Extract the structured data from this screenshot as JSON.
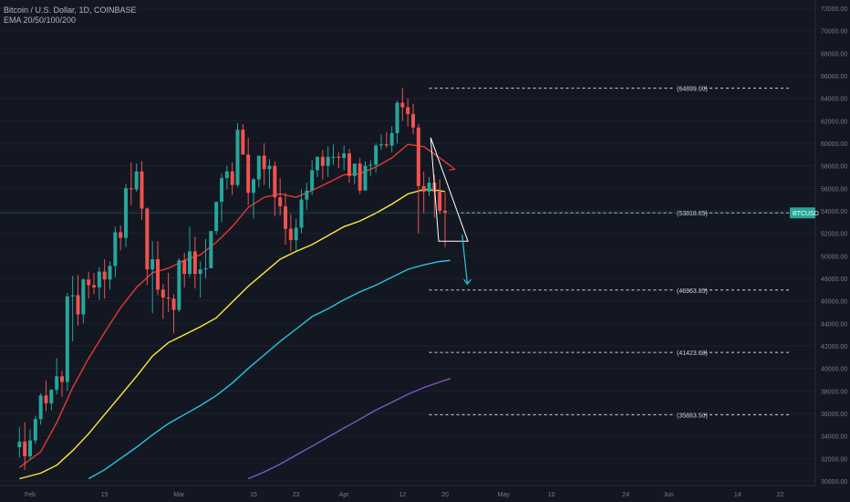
{
  "header": {
    "symbol_line": "Bitcoin / U.S. Dollar, 1D, COINBASE",
    "indicator_line": "EMA 20/50/100/200"
  },
  "colors": {
    "background": "#131722",
    "up_candle": "#26a69a",
    "down_candle": "#ef5350",
    "ema20": "#e53935",
    "ema50": "#ffeb3b",
    "ema100": "#26c6da",
    "ema200": "#7e57c2",
    "level_line": "#d1d4dc",
    "price_label_bg": "#26a69a",
    "axis_text": "#787b86",
    "projection_arrow": "#26c6da"
  },
  "price_axis": {
    "min": 30000,
    "max": 72000,
    "ticks": [
      "30000.00",
      "32000.00",
      "34000.00",
      "36000.00",
      "38000.00",
      "40000.00",
      "42000.00",
      "44000.00",
      "46000.00",
      "48000.00",
      "50000.00",
      "52000.00",
      "54000.00",
      "56000.00",
      "58000.00",
      "60000.00",
      "62000.00",
      "64000.00",
      "66000.00",
      "68000.00",
      "70000.00",
      "72000.00"
    ],
    "current_label": "BTCUSD",
    "current_value": 53818.65
  },
  "time_axis": {
    "labels": [
      {
        "text": "Feb",
        "day": 0
      },
      {
        "text": "15",
        "day": 14
      },
      {
        "text": "Mar",
        "day": 28
      },
      {
        "text": "15",
        "day": 42
      },
      {
        "text": "23",
        "day": 50
      },
      {
        "text": "Apr",
        "day": 59
      },
      {
        "text": "12",
        "day": 70
      },
      {
        "text": "20",
        "day": 78
      },
      {
        "text": "May",
        "day": 89
      },
      {
        "text": "10",
        "day": 98
      },
      {
        "text": "24",
        "day": 112
      },
      {
        "text": "Jun",
        "day": 120
      },
      {
        "text": "14",
        "day": 133
      },
      {
        "text": "22",
        "day": 141
      }
    ]
  },
  "levels": [
    {
      "label": "(64899.00)",
      "value": 64899.0,
      "from_day": 75
    },
    {
      "label": "(53818.65)",
      "value": 53818.65,
      "from_day": 81
    },
    {
      "label": "(46963.85)",
      "value": 46963.85,
      "from_day": 75
    },
    {
      "label": "(41423.68)",
      "value": 41423.68,
      "from_day": 75
    },
    {
      "label": "(35883.50)",
      "value": 35883.5,
      "from_day": 75
    }
  ],
  "chart_data": {
    "type": "candlestick",
    "title": "Bitcoin / U.S. Dollar, 1D, COINBASE",
    "ylim": [
      30000,
      72000
    ],
    "x_unit": "day offset from Feb 1",
    "candles": [
      {
        "x": -2,
        "o": 33000,
        "h": 34800,
        "l": 32100,
        "c": 33500
      },
      {
        "x": -1,
        "o": 33500,
        "h": 35200,
        "l": 31000,
        "c": 32200
      },
      {
        "x": 0,
        "o": 32200,
        "h": 34600,
        "l": 31900,
        "c": 33600
      },
      {
        "x": 1,
        "o": 33600,
        "h": 35800,
        "l": 33300,
        "c": 35500
      },
      {
        "x": 2,
        "o": 35500,
        "h": 37800,
        "l": 35000,
        "c": 37600
      },
      {
        "x": 3,
        "o": 37600,
        "h": 38900,
        "l": 36200,
        "c": 36900
      },
      {
        "x": 4,
        "o": 36900,
        "h": 38200,
        "l": 36300,
        "c": 38100
      },
      {
        "x": 5,
        "o": 38100,
        "h": 40900,
        "l": 37700,
        "c": 39300
      },
      {
        "x": 6,
        "o": 39300,
        "h": 39800,
        "l": 37500,
        "c": 38800
      },
      {
        "x": 7,
        "o": 38800,
        "h": 46700,
        "l": 38000,
        "c": 46400
      },
      {
        "x": 8,
        "o": 46400,
        "h": 48200,
        "l": 42400,
        "c": 46500
      },
      {
        "x": 9,
        "o": 46500,
        "h": 48300,
        "l": 43800,
        "c": 44800
      },
      {
        "x": 10,
        "o": 44800,
        "h": 48000,
        "l": 44000,
        "c": 47900
      },
      {
        "x": 11,
        "o": 47900,
        "h": 48600,
        "l": 46200,
        "c": 47400
      },
      {
        "x": 12,
        "o": 47400,
        "h": 48500,
        "l": 46600,
        "c": 47200
      },
      {
        "x": 13,
        "o": 47200,
        "h": 49000,
        "l": 46100,
        "c": 48600
      },
      {
        "x": 14,
        "o": 48600,
        "h": 49700,
        "l": 46200,
        "c": 47900
      },
      {
        "x": 15,
        "o": 47900,
        "h": 49500,
        "l": 47000,
        "c": 49100
      },
      {
        "x": 16,
        "o": 49100,
        "h": 52600,
        "l": 48100,
        "c": 52100
      },
      {
        "x": 17,
        "o": 52100,
        "h": 52700,
        "l": 50500,
        "c": 51600
      },
      {
        "x": 18,
        "o": 51600,
        "h": 56400,
        "l": 50800,
        "c": 56000
      },
      {
        "x": 19,
        "o": 56000,
        "h": 58300,
        "l": 54500,
        "c": 55900
      },
      {
        "x": 20,
        "o": 55900,
        "h": 58200,
        "l": 55700,
        "c": 57500
      },
      {
        "x": 21,
        "o": 57500,
        "h": 58400,
        "l": 53200,
        "c": 54200
      },
      {
        "x": 22,
        "o": 54200,
        "h": 54300,
        "l": 47400,
        "c": 48800
      },
      {
        "x": 23,
        "o": 48800,
        "h": 51300,
        "l": 44900,
        "c": 49700
      },
      {
        "x": 24,
        "o": 49700,
        "h": 51300,
        "l": 46500,
        "c": 47000
      },
      {
        "x": 25,
        "o": 47000,
        "h": 47500,
        "l": 44400,
        "c": 46300
      },
      {
        "x": 26,
        "o": 46300,
        "h": 48500,
        "l": 45000,
        "c": 46200
      },
      {
        "x": 27,
        "o": 46200,
        "h": 46600,
        "l": 43100,
        "c": 45200
      },
      {
        "x": 28,
        "o": 45200,
        "h": 49800,
        "l": 45000,
        "c": 49600
      },
      {
        "x": 29,
        "o": 49600,
        "h": 50300,
        "l": 47200,
        "c": 48400
      },
      {
        "x": 30,
        "o": 48400,
        "h": 52600,
        "l": 48100,
        "c": 50400
      },
      {
        "x": 31,
        "o": 50400,
        "h": 51700,
        "l": 47100,
        "c": 48400
      },
      {
        "x": 32,
        "o": 48400,
        "h": 49500,
        "l": 46300,
        "c": 48800
      },
      {
        "x": 33,
        "o": 48800,
        "h": 51500,
        "l": 48000,
        "c": 48900
      },
      {
        "x": 34,
        "o": 48900,
        "h": 52200,
        "l": 49000,
        "c": 52200
      },
      {
        "x": 35,
        "o": 52200,
        "h": 54800,
        "l": 51900,
        "c": 54800
      },
      {
        "x": 36,
        "o": 54800,
        "h": 57300,
        "l": 53000,
        "c": 56900
      },
      {
        "x": 37,
        "o": 56900,
        "h": 58000,
        "l": 55900,
        "c": 57500
      },
      {
        "x": 38,
        "o": 57500,
        "h": 58300,
        "l": 55400,
        "c": 56300
      },
      {
        "x": 39,
        "o": 56300,
        "h": 61800,
        "l": 56100,
        "c": 61200
      },
      {
        "x": 40,
        "o": 61200,
        "h": 61700,
        "l": 59000,
        "c": 59000
      },
      {
        "x": 41,
        "o": 59000,
        "h": 60500,
        "l": 54500,
        "c": 55600
      },
      {
        "x": 42,
        "o": 55600,
        "h": 56900,
        "l": 53300,
        "c": 56800
      },
      {
        "x": 43,
        "o": 56800,
        "h": 58900,
        "l": 56100,
        "c": 58900
      },
      {
        "x": 44,
        "o": 58900,
        "h": 60000,
        "l": 56300,
        "c": 57700
      },
      {
        "x": 45,
        "o": 57700,
        "h": 58600,
        "l": 56000,
        "c": 58000
      },
      {
        "x": 46,
        "o": 58000,
        "h": 58400,
        "l": 53500,
        "c": 55200
      },
      {
        "x": 47,
        "o": 55200,
        "h": 56900,
        "l": 53600,
        "c": 54400
      },
      {
        "x": 48,
        "o": 54400,
        "h": 55600,
        "l": 51000,
        "c": 52400
      },
      {
        "x": 49,
        "o": 52400,
        "h": 53700,
        "l": 50400,
        "c": 51400
      },
      {
        "x": 50,
        "o": 51400,
        "h": 53300,
        "l": 50500,
        "c": 52500
      },
      {
        "x": 51,
        "o": 52500,
        "h": 55900,
        "l": 52000,
        "c": 55000
      },
      {
        "x": 52,
        "o": 55000,
        "h": 56500,
        "l": 54100,
        "c": 55800
      },
      {
        "x": 53,
        "o": 55800,
        "h": 58500,
        "l": 55400,
        "c": 57600
      },
      {
        "x": 54,
        "o": 57600,
        "h": 58800,
        "l": 57000,
        "c": 58800
      },
      {
        "x": 55,
        "o": 58800,
        "h": 59400,
        "l": 56800,
        "c": 58000
      },
      {
        "x": 56,
        "o": 58000,
        "h": 59700,
        "l": 57000,
        "c": 58800
      },
      {
        "x": 57,
        "o": 58800,
        "h": 59900,
        "l": 58100,
        "c": 58800
      },
      {
        "x": 58,
        "o": 58800,
        "h": 59200,
        "l": 57800,
        "c": 58700
      },
      {
        "x": 59,
        "o": 58700,
        "h": 59800,
        "l": 57600,
        "c": 59100
      },
      {
        "x": 60,
        "o": 59100,
        "h": 59500,
        "l": 56500,
        "c": 57100
      },
      {
        "x": 61,
        "o": 57100,
        "h": 58000,
        "l": 56400,
        "c": 58200
      },
      {
        "x": 62,
        "o": 58200,
        "h": 58700,
        "l": 55500,
        "c": 55800
      },
      {
        "x": 63,
        "o": 55800,
        "h": 58400,
        "l": 55900,
        "c": 58000
      },
      {
        "x": 64,
        "o": 58000,
        "h": 58500,
        "l": 57100,
        "c": 58100
      },
      {
        "x": 65,
        "o": 58100,
        "h": 60000,
        "l": 57400,
        "c": 59800
      },
      {
        "x": 66,
        "o": 59800,
        "h": 60800,
        "l": 59400,
        "c": 59900
      },
      {
        "x": 67,
        "o": 59900,
        "h": 61000,
        "l": 59600,
        "c": 59800
      },
      {
        "x": 68,
        "o": 59800,
        "h": 61500,
        "l": 59200,
        "c": 60900
      },
      {
        "x": 69,
        "o": 60900,
        "h": 63800,
        "l": 60000,
        "c": 63600
      },
      {
        "x": 70,
        "o": 63600,
        "h": 64899,
        "l": 62000,
        "c": 63200
      },
      {
        "x": 71,
        "o": 63200,
        "h": 64000,
        "l": 61500,
        "c": 62600
      },
      {
        "x": 72,
        "o": 62600,
        "h": 63500,
        "l": 60800,
        "c": 61400
      },
      {
        "x": 73,
        "o": 61400,
        "h": 61700,
        "l": 52000,
        "c": 56200
      },
      {
        "x": 74,
        "o": 56200,
        "h": 57500,
        "l": 53800,
        "c": 55700
      },
      {
        "x": 75,
        "o": 55700,
        "h": 57000,
        "l": 55300,
        "c": 56500
      },
      {
        "x": 76,
        "o": 56500,
        "h": 57200,
        "l": 53400,
        "c": 55700
      },
      {
        "x": 77,
        "o": 55700,
        "h": 56800,
        "l": 53700,
        "c": 54000
      },
      {
        "x": 78,
        "o": 54000,
        "h": 55600,
        "l": 50800,
        "c": 53818.65
      }
    ],
    "series": [
      {
        "name": "EMA 20",
        "color": "#e53935",
        "x": [
          -2,
          2,
          5,
          8,
          11,
          14,
          17,
          20,
          23,
          26,
          29,
          32,
          35,
          38,
          41,
          44,
          47,
          50,
          53,
          56,
          59,
          62,
          65,
          68,
          71,
          74,
          77,
          79
        ],
        "y": [
          31200,
          32600,
          35200,
          38300,
          40900,
          43200,
          45400,
          47200,
          48500,
          48900,
          49600,
          50100,
          51200,
          52600,
          54300,
          55200,
          55500,
          55200,
          55800,
          56500,
          57200,
          57300,
          57900,
          58700,
          59900,
          59700,
          58700,
          58000
        ]
      },
      {
        "name": "EMA 50",
        "color": "#ffeb3b",
        "x": [
          -2,
          2,
          5,
          8,
          11,
          14,
          17,
          20,
          23,
          26,
          29,
          32,
          35,
          38,
          41,
          44,
          47,
          50,
          53,
          56,
          59,
          62,
          65,
          68,
          71,
          74,
          77,
          78
        ],
        "y": [
          30200,
          30700,
          31400,
          32700,
          34200,
          35900,
          37600,
          39300,
          41100,
          42300,
          43000,
          43700,
          44500,
          45900,
          47300,
          48500,
          49700,
          50400,
          51000,
          51800,
          52600,
          53100,
          53800,
          54600,
          55500,
          55900,
          55800,
          55700
        ]
      },
      {
        "name": "EMA 100",
        "color": "#26c6da",
        "x": [
          11,
          14,
          17,
          20,
          23,
          26,
          29,
          32,
          35,
          38,
          41,
          44,
          47,
          50,
          53,
          56,
          59,
          62,
          65,
          68,
          71,
          74,
          77,
          79
        ],
        "y": [
          30200,
          31000,
          32000,
          33000,
          34100,
          35100,
          35900,
          36700,
          37600,
          38700,
          40000,
          41200,
          42400,
          43500,
          44600,
          45300,
          46100,
          46800,
          47400,
          48100,
          48800,
          49200,
          49500,
          49600
        ]
      },
      {
        "name": "EMA 200",
        "color": "#7e57c2",
        "x": [
          41,
          44,
          47,
          50,
          53,
          56,
          59,
          62,
          65,
          68,
          71,
          74,
          77,
          79
        ],
        "y": [
          30200,
          30800,
          31500,
          32300,
          33100,
          33900,
          34700,
          35500,
          36300,
          37000,
          37700,
          38300,
          38800,
          39100
        ]
      }
    ]
  }
}
